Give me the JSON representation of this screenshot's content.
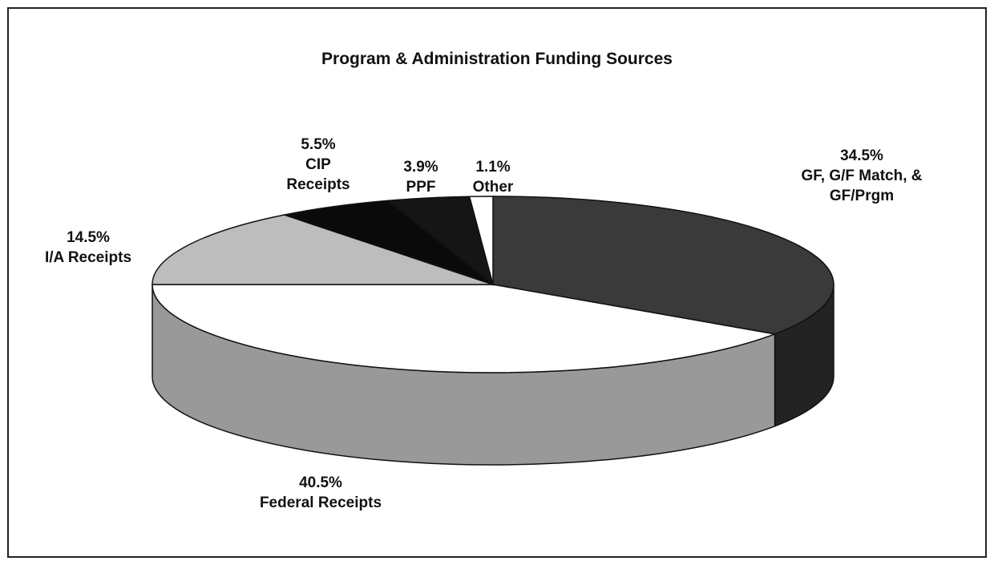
{
  "chart_data": {
    "type": "pie",
    "title": "Program & Administration Funding Sources",
    "categories": [
      "GF, G/F Match, & GF/Prgm",
      "Federal Receipts",
      "I/A Receipts",
      "CIP Receipts",
      "PPF",
      "Other"
    ],
    "values": [
      34.5,
      40.5,
      14.5,
      5.5,
      3.9,
      1.1
    ],
    "value_labels": [
      "34.5%",
      "40.5%",
      "14.5%",
      "5.5%",
      "3.9%",
      "1.1%"
    ],
    "colors": [
      "#3a3a3a",
      "#ffffff",
      "#bdbdbd",
      "#0a0a0a",
      "#151515",
      "#ffffff"
    ]
  }
}
